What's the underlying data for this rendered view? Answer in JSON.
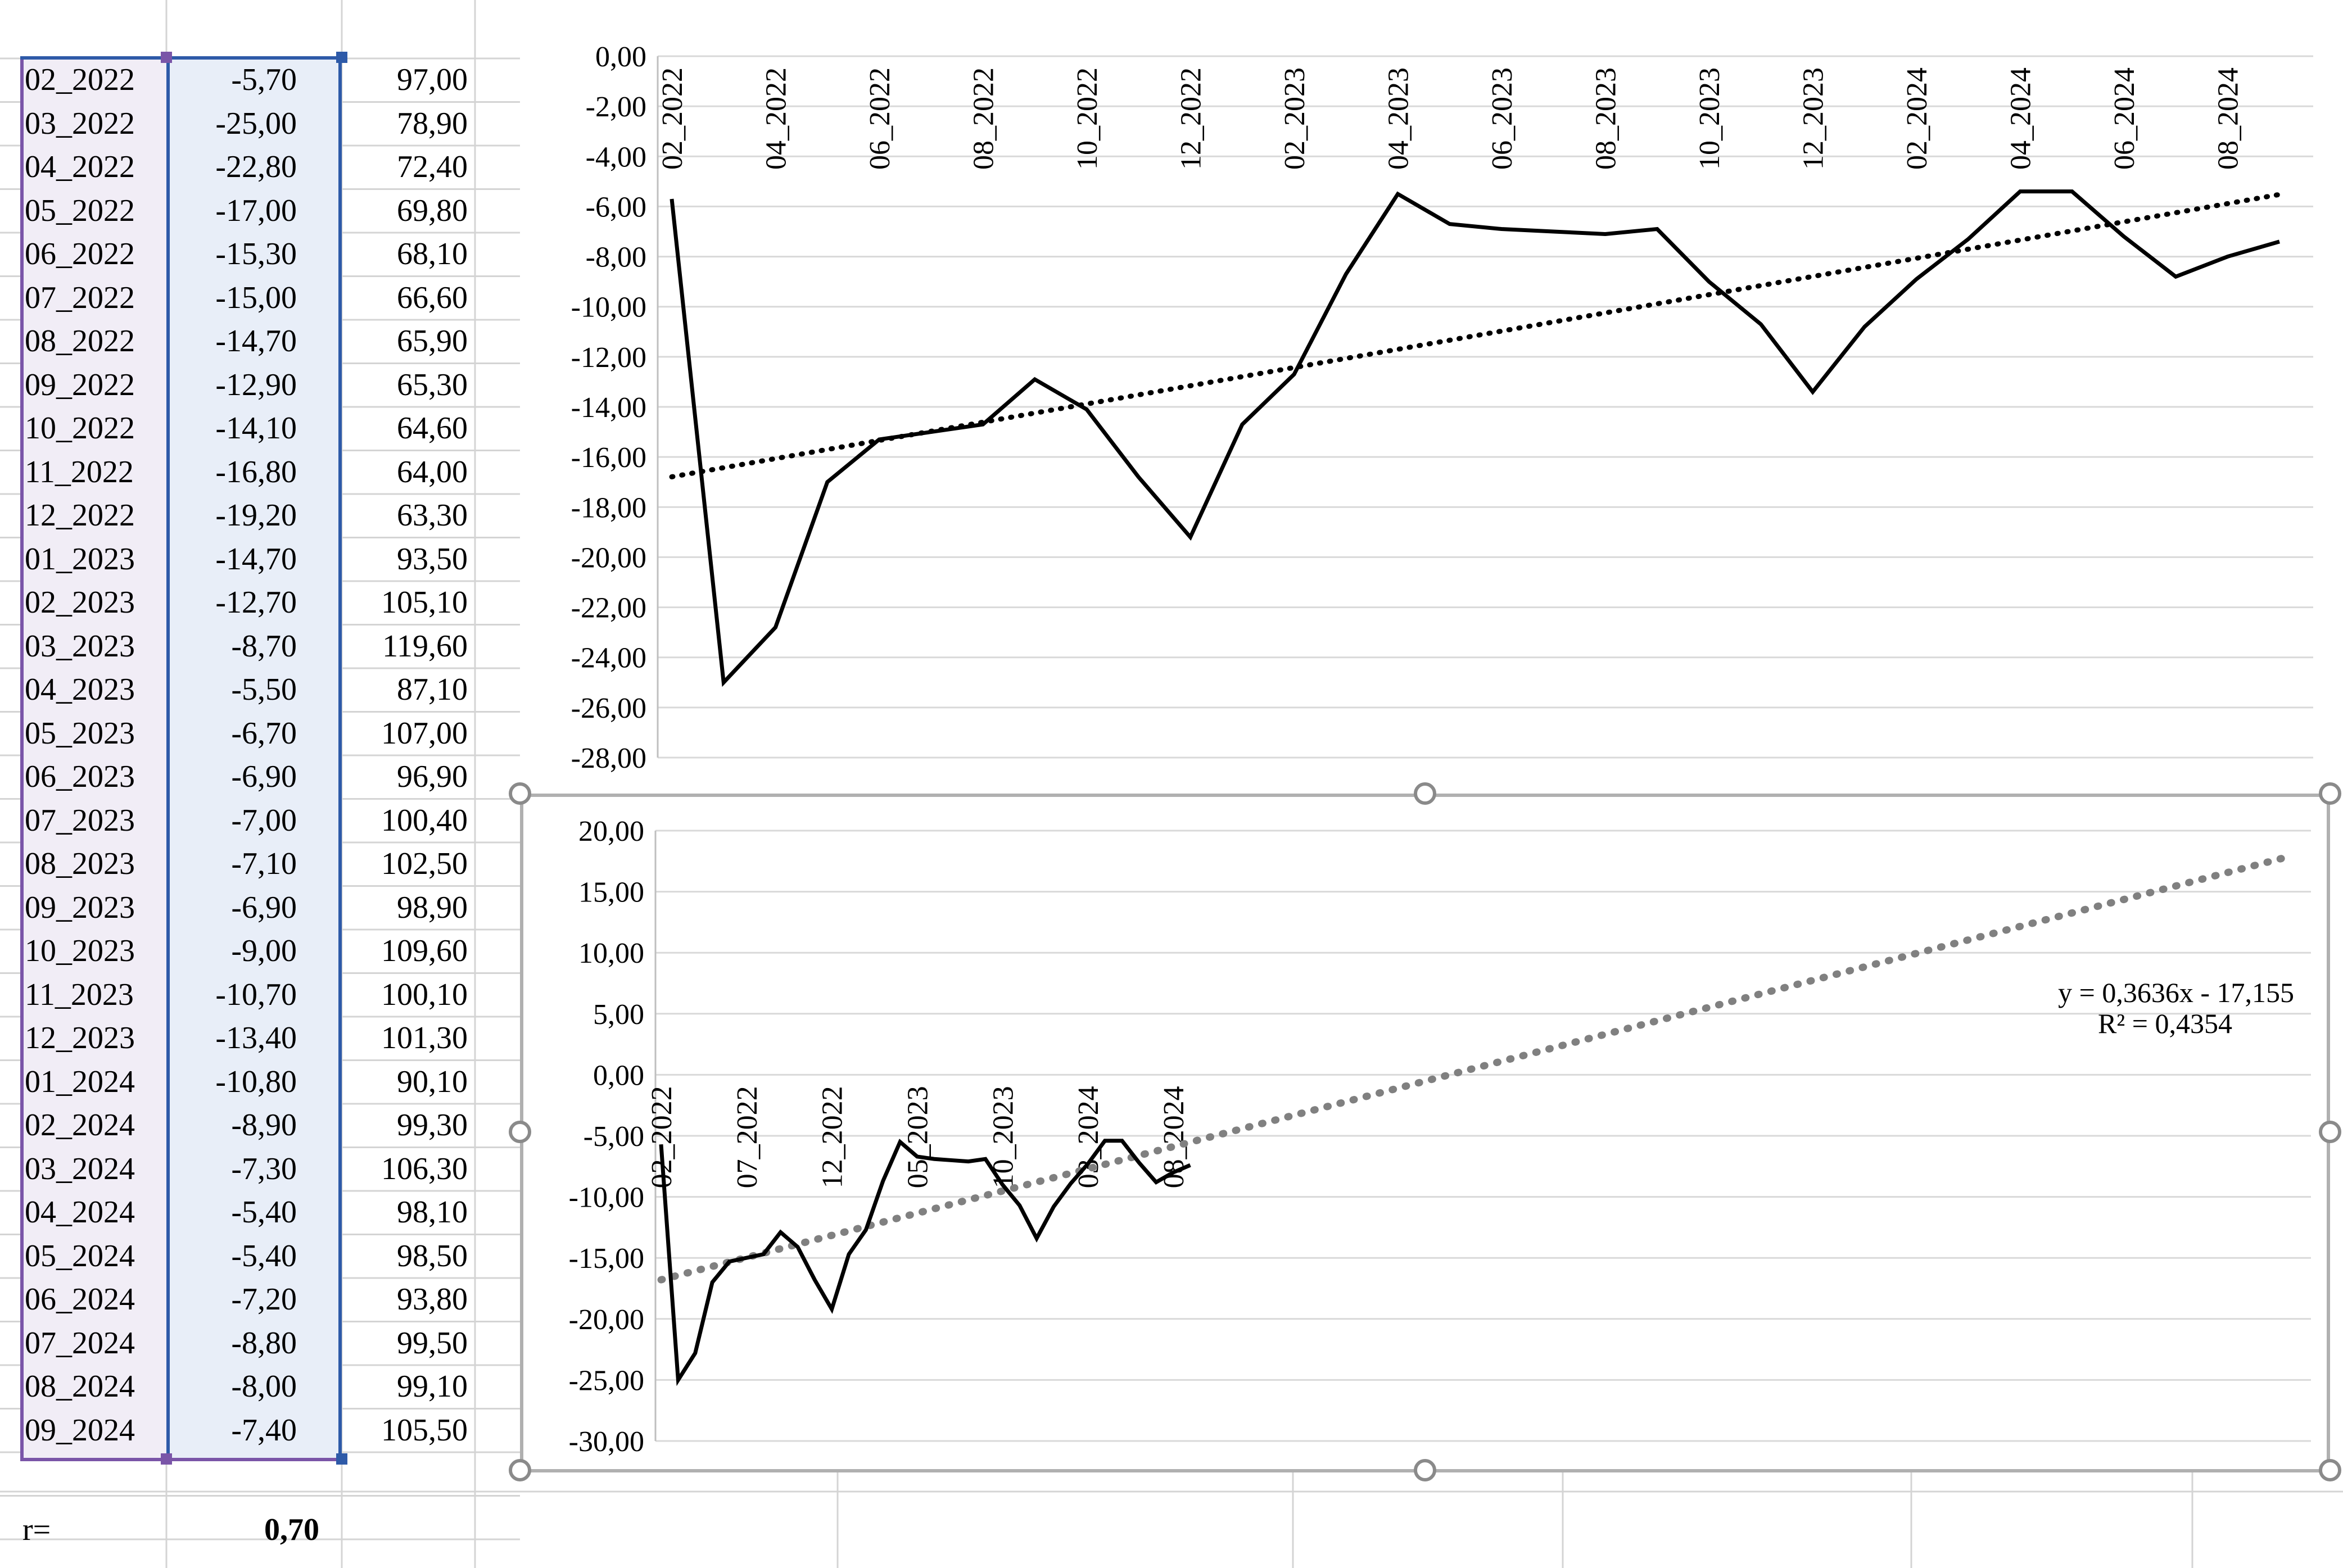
{
  "table": {
    "rows": [
      {
        "date": "02_2022",
        "v1": "-5,70",
        "v2": "97,00"
      },
      {
        "date": "03_2022",
        "v1": "-25,00",
        "v2": "78,90"
      },
      {
        "date": "04_2022",
        "v1": "-22,80",
        "v2": "72,40"
      },
      {
        "date": "05_2022",
        "v1": "-17,00",
        "v2": "69,80"
      },
      {
        "date": "06_2022",
        "v1": "-15,30",
        "v2": "68,10"
      },
      {
        "date": "07_2022",
        "v1": "-15,00",
        "v2": "66,60"
      },
      {
        "date": "08_2022",
        "v1": "-14,70",
        "v2": "65,90"
      },
      {
        "date": "09_2022",
        "v1": "-12,90",
        "v2": "65,30"
      },
      {
        "date": "10_2022",
        "v1": "-14,10",
        "v2": "64,60"
      },
      {
        "date": "11_2022",
        "v1": "-16,80",
        "v2": "64,00"
      },
      {
        "date": "12_2022",
        "v1": "-19,20",
        "v2": "63,30"
      },
      {
        "date": "01_2023",
        "v1": "-14,70",
        "v2": "93,50"
      },
      {
        "date": "02_2023",
        "v1": "-12,70",
        "v2": "105,10"
      },
      {
        "date": "03_2023",
        "v1": "-8,70",
        "v2": "119,60"
      },
      {
        "date": "04_2023",
        "v1": "-5,50",
        "v2": "87,10"
      },
      {
        "date": "05_2023",
        "v1": "-6,70",
        "v2": "107,00"
      },
      {
        "date": "06_2023",
        "v1": "-6,90",
        "v2": "96,90"
      },
      {
        "date": "07_2023",
        "v1": "-7,00",
        "v2": "100,40"
      },
      {
        "date": "08_2023",
        "v1": "-7,10",
        "v2": "102,50"
      },
      {
        "date": "09_2023",
        "v1": "-6,90",
        "v2": "98,90"
      },
      {
        "date": "10_2023",
        "v1": "-9,00",
        "v2": "109,60"
      },
      {
        "date": "11_2023",
        "v1": "-10,70",
        "v2": "100,10"
      },
      {
        "date": "12_2023",
        "v1": "-13,40",
        "v2": "101,30"
      },
      {
        "date": "01_2024",
        "v1": "-10,80",
        "v2": "90,10"
      },
      {
        "date": "02_2024",
        "v1": "-8,90",
        "v2": "99,30"
      },
      {
        "date": "03_2024",
        "v1": "-7,30",
        "v2": "106,30"
      },
      {
        "date": "04_2024",
        "v1": "-5,40",
        "v2": "98,10"
      },
      {
        "date": "05_2024",
        "v1": "-5,40",
        "v2": "98,50"
      },
      {
        "date": "06_2024",
        "v1": "-7,20",
        "v2": "93,80"
      },
      {
        "date": "07_2024",
        "v1": "-8,80",
        "v2": "99,50"
      },
      {
        "date": "08_2024",
        "v1": "-8,00",
        "v2": "99,10"
      },
      {
        "date": "09_2024",
        "v1": "-7,40",
        "v2": "105,50"
      }
    ],
    "r_label": "r=",
    "r_value": "0,70"
  },
  "chart_data": [
    {
      "type": "line",
      "x": [
        "02_2022",
        "03_2022",
        "04_2022",
        "05_2022",
        "06_2022",
        "07_2022",
        "08_2022",
        "09_2022",
        "10_2022",
        "11_2022",
        "12_2022",
        "01_2023",
        "02_2023",
        "03_2023",
        "04_2023",
        "05_2023",
        "06_2023",
        "07_2023",
        "08_2023",
        "09_2023",
        "10_2023",
        "11_2023",
        "12_2023",
        "01_2024",
        "02_2024",
        "03_2024",
        "04_2024",
        "05_2024",
        "06_2024",
        "07_2024",
        "08_2024",
        "09_2024"
      ],
      "series": [
        {
          "values": [
            -5.7,
            -25.0,
            -22.8,
            -17.0,
            -15.3,
            -15.0,
            -14.7,
            -12.9,
            -14.1,
            -16.8,
            -19.2,
            -14.7,
            -12.7,
            -8.7,
            -5.5,
            -6.7,
            -6.9,
            -7.0,
            -7.1,
            -6.9,
            -9.0,
            -10.7,
            -13.4,
            -10.8,
            -8.9,
            -7.3,
            -5.4,
            -5.4,
            -7.2,
            -8.8,
            -8.0,
            -7.4
          ]
        }
      ],
      "trendline": {
        "type": "linear",
        "style": "dotted",
        "color": "#000000"
      },
      "x_tick_labels": [
        "02_2022",
        "04_2022",
        "06_2022",
        "08_2022",
        "10_2022",
        "12_2022",
        "02_2023",
        "04_2023",
        "06_2023",
        "08_2023",
        "10_2023",
        "12_2023",
        "02_2024",
        "04_2024",
        "06_2024",
        "08_2024"
      ],
      "y_tick_labels": [
        "0,00",
        "-2,00",
        "-4,00",
        "-6,00",
        "-8,00",
        "-10,00",
        "-12,00",
        "-14,00",
        "-16,00",
        "-18,00",
        "-20,00",
        "-22,00",
        "-24,00",
        "-26,00",
        "-28,00"
      ],
      "ylim": [
        -28,
        0
      ],
      "grid": true,
      "colors": {
        "line": "#000000",
        "grid": "#d9d9d9"
      }
    },
    {
      "type": "line",
      "x": [
        "02_2022",
        "03_2022",
        "04_2022",
        "05_2022",
        "06_2022",
        "07_2022",
        "08_2022",
        "09_2022",
        "10_2022",
        "11_2022",
        "12_2022",
        "01_2023",
        "02_2023",
        "03_2023",
        "04_2023",
        "05_2023",
        "06_2023",
        "07_2023",
        "08_2023",
        "09_2023",
        "10_2023",
        "11_2023",
        "12_2023",
        "01_2024",
        "02_2024",
        "03_2024",
        "04_2024",
        "05_2024",
        "06_2024",
        "07_2024",
        "08_2024",
        "09_2024"
      ],
      "series": [
        {
          "values": [
            -5.7,
            -25.0,
            -22.8,
            -17.0,
            -15.3,
            -15.0,
            -14.7,
            -12.9,
            -14.1,
            -16.8,
            -19.2,
            -14.7,
            -12.7,
            -8.7,
            -5.5,
            -6.7,
            -6.9,
            -7.0,
            -7.1,
            -6.9,
            -9.0,
            -10.7,
            -13.4,
            -10.8,
            -8.9,
            -7.3,
            -5.4,
            -5.4,
            -7.2,
            -8.8,
            -8.0,
            -7.4
          ]
        }
      ],
      "trendline": {
        "type": "linear",
        "style": "dotted",
        "color": "#808080",
        "forecast_periods": 64
      },
      "x_tick_labels": [
        "02_2022",
        "07_2022",
        "12_2022",
        "05_2023",
        "10_2023",
        "03_2024",
        "08_2024"
      ],
      "y_tick_labels": [
        "20,00",
        "15,00",
        "10,00",
        "5,00",
        "0,00",
        "-5,00",
        "-10,00",
        "-15,00",
        "-20,00",
        "-25,00",
        "-30,00"
      ],
      "ylim": [
        -30,
        20
      ],
      "equation": "y = 0,3636x - 17,155",
      "r_squared": "R² = 0,4354",
      "grid": true,
      "colors": {
        "line": "#000000",
        "trend": "#808080",
        "grid": "#d9d9d9"
      }
    }
  ]
}
